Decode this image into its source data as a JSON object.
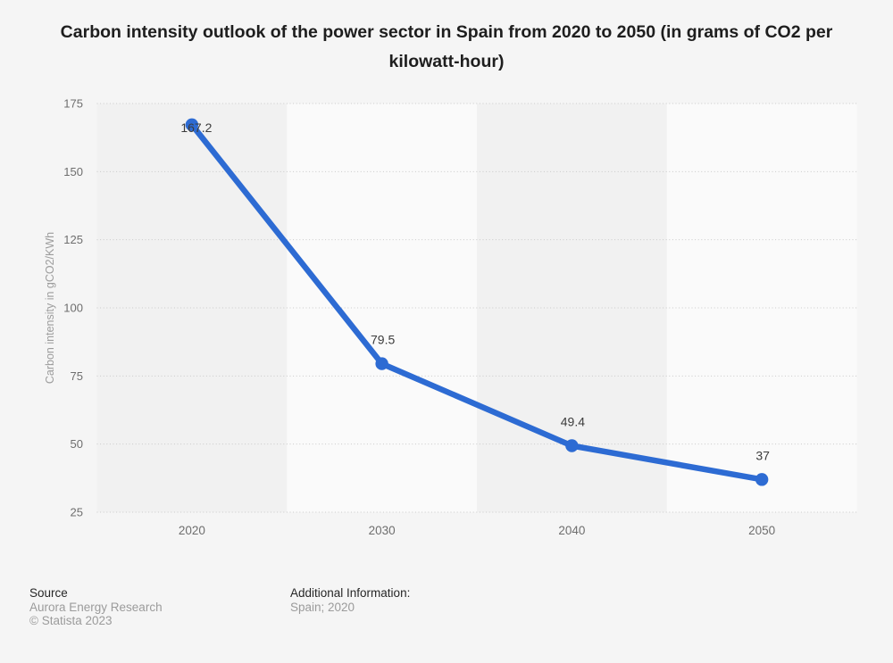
{
  "title": "Carbon intensity outlook of the power sector in Spain from 2020 to 2050 (in grams of CO2 per kilowatt-hour)",
  "chart_data": {
    "type": "line",
    "title": "Carbon intensity outlook of the power sector in Spain from 2020 to 2050 (in grams of CO2 per kilowatt-hour)",
    "categories": [
      "2020",
      "2030",
      "2040",
      "2050"
    ],
    "values": [
      167.2,
      79.5,
      49.4,
      37
    ],
    "point_labels": [
      "167.2",
      "79.5",
      "49.4",
      "37"
    ],
    "xlabel": "",
    "ylabel": "Carbon intensity in gCO2/KWh",
    "ylim": [
      25,
      175
    ],
    "yticks": [
      175,
      150,
      125,
      100,
      75,
      50,
      25
    ],
    "grid": "horizontal-dotted",
    "legend": "none",
    "line_color": "#2d6bd3",
    "marker_color": "#2d6bd3",
    "band_colors": [
      "#f1f1f1",
      "#fafafa"
    ],
    "gridline_color": "#c9c9c9",
    "tick_label_color": "#6e6e6e",
    "axis_title_color": "#9c9c9c",
    "point_label_color": "#3c3c3c",
    "background_color": "#f5f5f5"
  },
  "footer": {
    "source_label": "Source",
    "source_value": "Aurora Energy Research",
    "copyright": "© Statista 2023",
    "additional_label": "Additional Information:",
    "additional_value": "Spain; 2020"
  }
}
